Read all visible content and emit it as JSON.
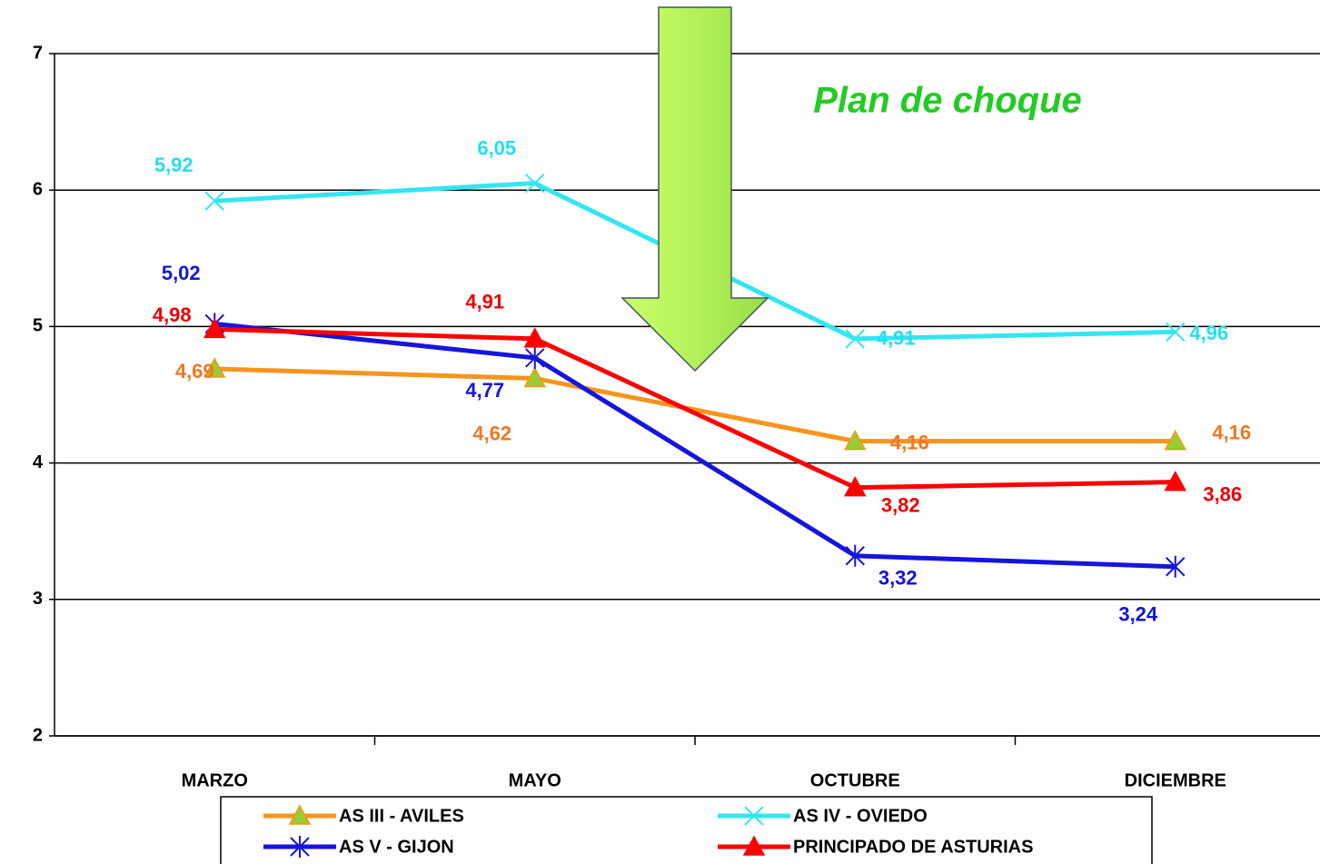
{
  "chart_data": {
    "type": "line",
    "annotation": "Plan de choque",
    "categories": [
      "MARZO",
      "MAYO",
      "OCTUBRE",
      "DICIEMBRE"
    ],
    "series": [
      {
        "name": "AS III - AVILES",
        "color": "#f7941d",
        "marker": "triangle",
        "marker_fill": "#99cc33",
        "values": [
          4.69,
          4.62,
          4.16,
          4.16
        ],
        "value_labels": [
          "4,69",
          "4,62",
          "4,16",
          "4,16"
        ],
        "label_color": "#ee7722"
      },
      {
        "name": "AS IV - OVIEDO",
        "color": "#33e6f0",
        "marker": "x",
        "values": [
          5.92,
          6.05,
          4.91,
          4.96
        ],
        "value_labels": [
          "5,92",
          "6,05",
          "4,91",
          "4,96"
        ],
        "label_color": "#22e0f0"
      },
      {
        "name": "AS V - GIJON",
        "color": "#1515dd",
        "marker": "star",
        "values": [
          5.02,
          4.77,
          3.32,
          3.24
        ],
        "value_labels": [
          "5,02",
          "4,77",
          "3,32",
          "3,24"
        ],
        "label_color": "#1515dd"
      },
      {
        "name": "PRINCIPADO DE ASTURIAS",
        "color": "#ff0000",
        "marker": "triangle",
        "marker_fill": "#ff0000",
        "values": [
          4.98,
          4.91,
          3.82,
          3.86
        ],
        "value_labels": [
          "4,98",
          "4,91",
          "3,82",
          "3,86"
        ],
        "label_color": "#ee0000"
      }
    ],
    "ylim": [
      2,
      7
    ],
    "yticks": [
      2,
      3,
      4,
      5,
      6,
      7
    ],
    "grid": true
  }
}
